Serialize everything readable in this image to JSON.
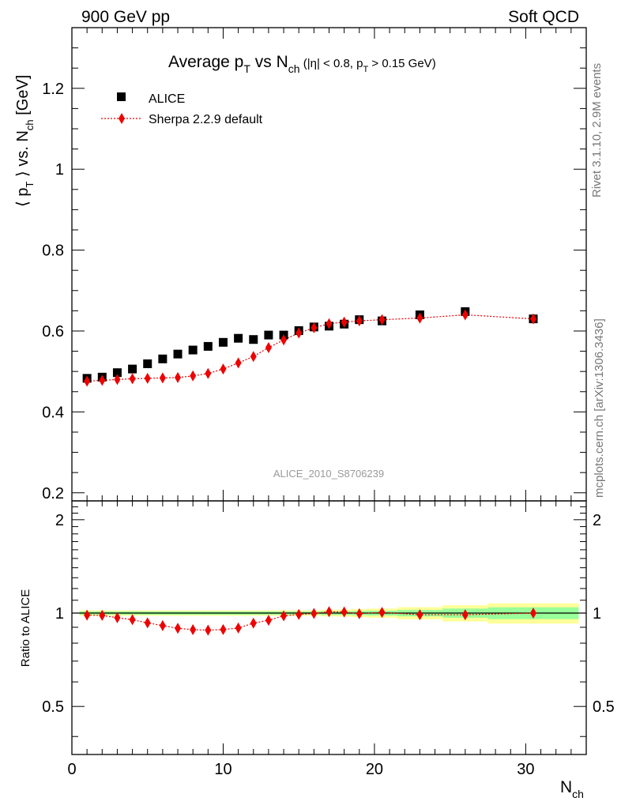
{
  "header": {
    "left": "900 GeV pp",
    "right": "Soft QCD"
  },
  "side_labels": {
    "rivet": "Rivet 3.1.10,  2.9M events",
    "mcplots": "mcplots.cern.ch [arXiv:1306.3436]"
  },
  "title": {
    "main": "Average p",
    "main_sub": "T",
    "vs": " vs N",
    "vs_sub": "ch",
    "cuts_a": " (|η| < 0.8, p",
    "cuts_sub": "T",
    "cuts_b": " > 0.15 GeV)"
  },
  "analysis_tag": "ALICE_2010_S8706239",
  "axes": {
    "xlabel": "N",
    "xlabel_sub": "ch",
    "ylabel_main_a": "⟨ p",
    "ylabel_main_sub": "T",
    "ylabel_main_b": " ⟩ vs. N",
    "ylabel_main_sub2": "ch",
    "ylabel_main_c": " [GeV]",
    "ylabel_ratio": "Ratio to ALICE"
  },
  "legend": {
    "data": "ALICE",
    "mc": "Sherpa 2.2.9 default"
  },
  "colors": {
    "mc": "#ee0000",
    "data": "#000000",
    "band_inner": "#99ff99",
    "band_outer": "#ffff99"
  },
  "chart_data": {
    "type": "scatter",
    "main": {
      "xlim": [
        0,
        34
      ],
      "ylim": [
        0.18,
        1.35
      ],
      "xticks": [
        0,
        10,
        20,
        30
      ],
      "yticks": [
        0.2,
        0.4,
        0.6,
        0.8,
        1,
        1.2
      ],
      "ytick_labels": [
        "0.2",
        "0.4",
        "0.6",
        "0.8",
        "1",
        "1.2"
      ]
    },
    "ratio": {
      "ylim": [
        0.35,
        2.3
      ],
      "log": true,
      "yticks": [
        0.5,
        1,
        2
      ],
      "ytick_labels": [
        "0.5",
        "1",
        "2"
      ]
    },
    "series": [
      {
        "name": "ALICE",
        "marker": "square",
        "x": [
          1,
          2,
          3,
          4,
          5,
          6,
          7,
          8,
          9,
          10,
          11,
          12,
          13,
          14,
          15,
          16,
          17,
          18,
          19,
          20.5,
          23,
          26,
          30.5
        ],
        "y": [
          0.483,
          0.486,
          0.497,
          0.506,
          0.519,
          0.531,
          0.543,
          0.553,
          0.562,
          0.572,
          0.582,
          0.579,
          0.59,
          0.59,
          0.601,
          0.61,
          0.612,
          0.617,
          0.628,
          0.625,
          0.64,
          0.648,
          0.63
        ]
      },
      {
        "name": "Sherpa 2.2.9 default",
        "marker": "diamond",
        "x": [
          1,
          2,
          3,
          4,
          5,
          6,
          7,
          8,
          9,
          10,
          11,
          12,
          13,
          14,
          15,
          16,
          17,
          18,
          19,
          20.5,
          23,
          26,
          30.5
        ],
        "y": [
          0.476,
          0.478,
          0.48,
          0.482,
          0.483,
          0.484,
          0.485,
          0.489,
          0.495,
          0.506,
          0.521,
          0.537,
          0.559,
          0.578,
          0.595,
          0.608,
          0.618,
          0.622,
          0.625,
          0.628,
          0.632,
          0.64,
          0.63
        ],
        "ratio": [
          0.985,
          0.983,
          0.966,
          0.952,
          0.93,
          0.911,
          0.893,
          0.884,
          0.881,
          0.885,
          0.895,
          0.928,
          0.948,
          0.98,
          0.99,
          0.997,
          1.01,
          1.008,
          0.995,
          1.005,
          0.988,
          0.988,
          1.0
        ]
      }
    ],
    "ratio_band": {
      "edges": [
        0.5,
        1.5,
        2.5,
        3.5,
        4.5,
        5.5,
        6.5,
        7.5,
        8.5,
        9.5,
        10.5,
        11.5,
        12.5,
        13.5,
        14.5,
        15.5,
        16.5,
        17.5,
        18.5,
        19.5,
        21.5,
        24.5,
        27.5,
        33.5
      ],
      "inner": [
        0.012,
        0.012,
        0.012,
        0.012,
        0.012,
        0.012,
        0.012,
        0.012,
        0.012,
        0.012,
        0.012,
        0.012,
        0.012,
        0.012,
        0.012,
        0.012,
        0.014,
        0.014,
        0.016,
        0.018,
        0.024,
        0.034,
        0.044
      ],
      "outer": [
        0.02,
        0.02,
        0.02,
        0.02,
        0.02,
        0.02,
        0.02,
        0.02,
        0.02,
        0.02,
        0.02,
        0.02,
        0.02,
        0.02,
        0.02,
        0.02,
        0.024,
        0.026,
        0.03,
        0.034,
        0.045,
        0.06,
        0.075
      ]
    }
  }
}
